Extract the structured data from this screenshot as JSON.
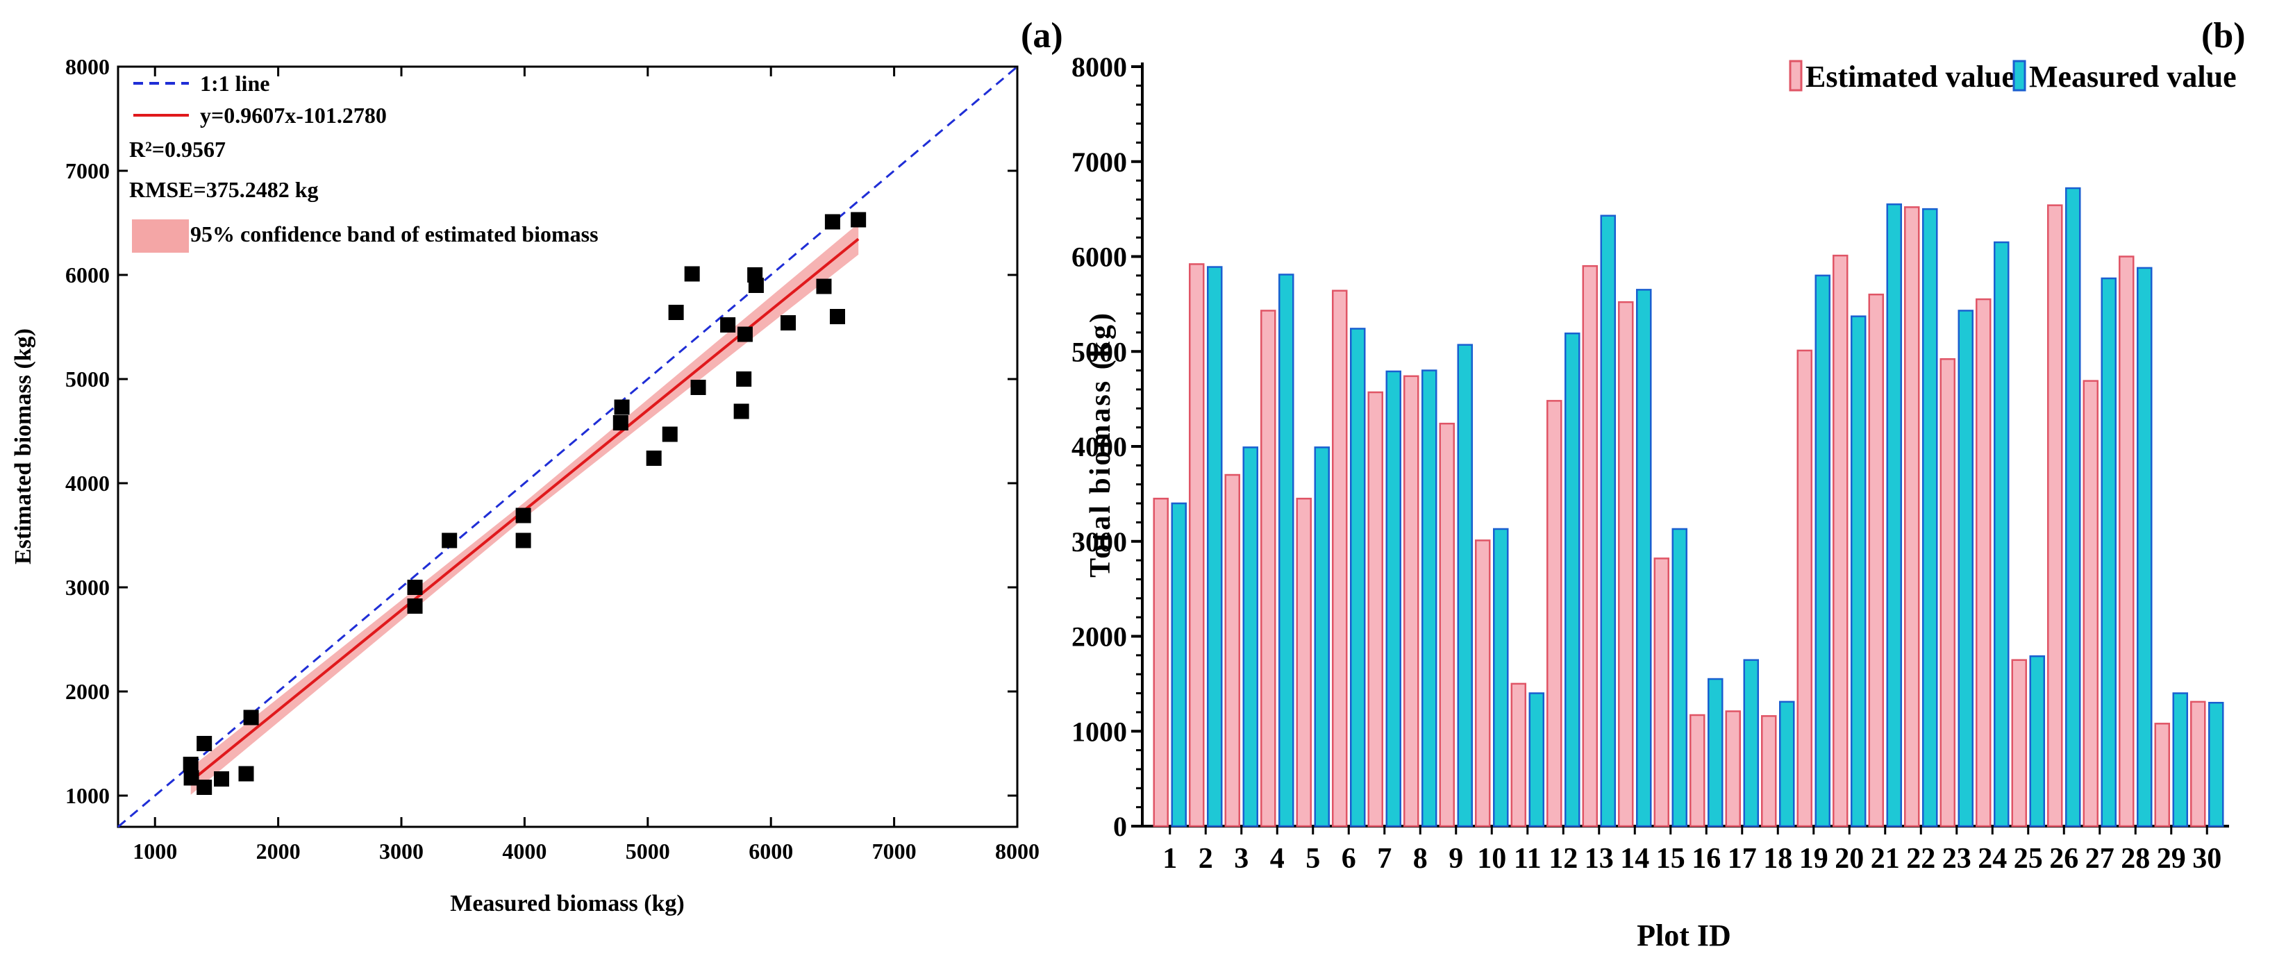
{
  "chart_data": [
    {
      "panel": "(a)",
      "type": "scatter",
      "title": "",
      "xlabel": "Measured biomass (kg)",
      "ylabel": "Estimated biomass (kg)",
      "xlim": [
        700,
        8000
      ],
      "ylim": [
        700,
        8000
      ],
      "xticks": [
        1000,
        2000,
        3000,
        4000,
        5000,
        6000,
        7000,
        8000
      ],
      "yticks": [
        1000,
        2000,
        3000,
        4000,
        5000,
        6000,
        7000,
        8000
      ],
      "legend": {
        "placement": "top-left",
        "line_1to1": "1:1 line",
        "fit_line": "y=0.9607x-101.2780",
        "r2": "R²=0.9567",
        "rmse": "RMSE=375.2482 kg",
        "band": "95% confidence band of estimated biomass"
      },
      "fit": {
        "slope": 0.9607,
        "intercept": -101.278,
        "x_range": [
          1290,
          6710
        ]
      },
      "band_halfwidth": [
        130,
        75,
        150
      ],
      "colors": {
        "one_to_one": "#1f2ed6",
        "fit": "#e0191c",
        "band": "#f4a6a6",
        "points": "#000000"
      },
      "points": [
        {
          "x": 1290,
          "y": 1300
        },
        {
          "x": 1295,
          "y": 1170
        },
        {
          "x": 1400,
          "y": 1500
        },
        {
          "x": 1400,
          "y": 1080
        },
        {
          "x": 1540,
          "y": 1160
        },
        {
          "x": 1740,
          "y": 1210
        },
        {
          "x": 1780,
          "y": 1750
        },
        {
          "x": 3110,
          "y": 3000
        },
        {
          "x": 3110,
          "y": 2820
        },
        {
          "x": 3390,
          "y": 3450
        },
        {
          "x": 3990,
          "y": 3690
        },
        {
          "x": 3990,
          "y": 3450
        },
        {
          "x": 4790,
          "y": 4730
        },
        {
          "x": 4780,
          "y": 4580
        },
        {
          "x": 5050,
          "y": 4240
        },
        {
          "x": 5180,
          "y": 4470
        },
        {
          "x": 5230,
          "y": 5640
        },
        {
          "x": 5360,
          "y": 6010
        },
        {
          "x": 5410,
          "y": 4920
        },
        {
          "x": 5650,
          "y": 5520
        },
        {
          "x": 5760,
          "y": 4690
        },
        {
          "x": 5780,
          "y": 5000
        },
        {
          "x": 5790,
          "y": 5430
        },
        {
          "x": 5870,
          "y": 6000
        },
        {
          "x": 5880,
          "y": 5900
        },
        {
          "x": 6140,
          "y": 5540
        },
        {
          "x": 6430,
          "y": 5890
        },
        {
          "x": 6500,
          "y": 6510
        },
        {
          "x": 6540,
          "y": 5600
        },
        {
          "x": 6710,
          "y": 6530
        }
      ]
    },
    {
      "panel": "(b)",
      "type": "bar",
      "title": "",
      "xlabel": "Plot ID",
      "ylabel": "Total biomass (kg)",
      "ylim": [
        0,
        8000
      ],
      "yticks": [
        0,
        1000,
        2000,
        3000,
        4000,
        5000,
        6000,
        7000,
        8000
      ],
      "legend_placement": "top-right",
      "categories": [
        "1",
        "2",
        "3",
        "4",
        "5",
        "6",
        "7",
        "8",
        "9",
        "10",
        "11",
        "12",
        "13",
        "14",
        "15",
        "16",
        "17",
        "18",
        "19",
        "20",
        "21",
        "22",
        "23",
        "24",
        "25",
        "26",
        "27",
        "28",
        "29",
        "30"
      ],
      "series": [
        {
          "name": "Estimated value",
          "color": "#f7b4bd",
          "edge": "#e05566",
          "values": [
            3450,
            5920,
            3700,
            5430,
            3450,
            5640,
            4570,
            4740,
            4240,
            3010,
            1500,
            4480,
            5900,
            5520,
            2820,
            1170,
            1210,
            1160,
            5010,
            6010,
            5600,
            6520,
            4920,
            5550,
            1750,
            6540,
            4690,
            6000,
            1080,
            1310
          ]
        },
        {
          "name": "Measured value",
          "color": "#1ec8d6",
          "edge": "#1a5fd0",
          "values": [
            3400,
            5890,
            3990,
            5810,
            3990,
            5240,
            4790,
            4800,
            5070,
            3130,
            1400,
            5190,
            6430,
            5650,
            3130,
            1550,
            1750,
            1310,
            5800,
            5370,
            6550,
            6500,
            5430,
            6150,
            1790,
            6720,
            5770,
            5880,
            1400,
            1300
          ]
        }
      ]
    }
  ]
}
